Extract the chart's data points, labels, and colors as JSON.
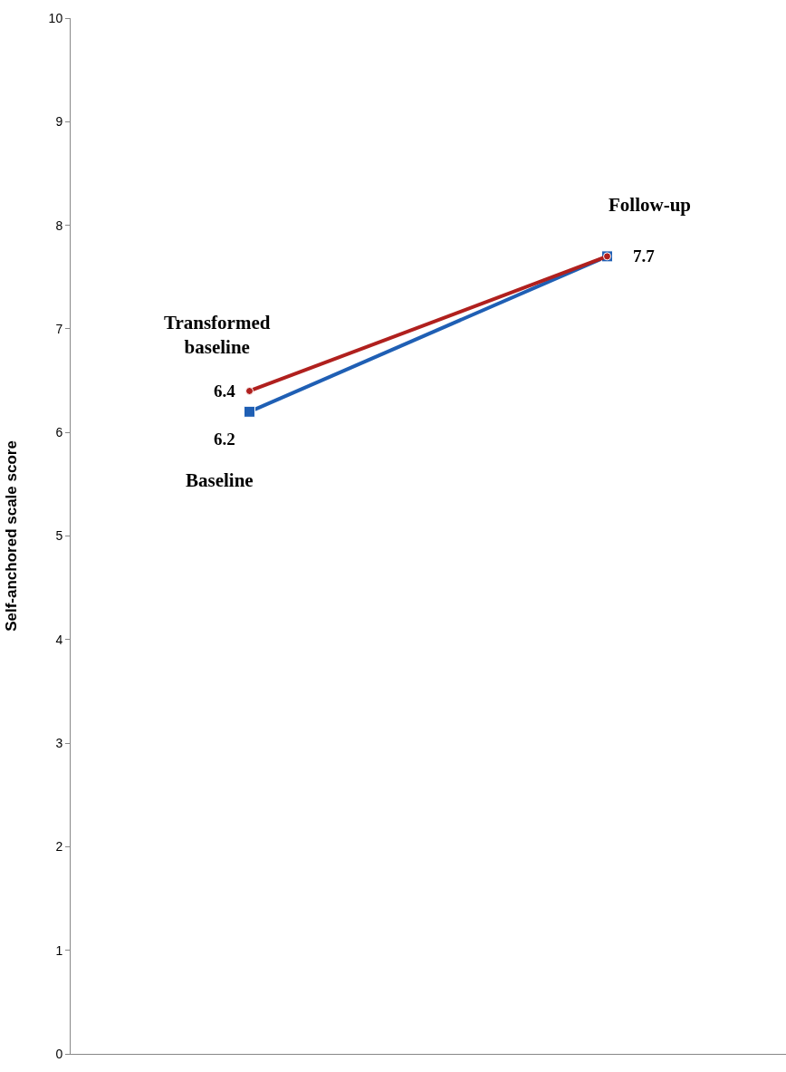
{
  "chart_data": {
    "type": "line",
    "ylabel": "Self-anchored scale score",
    "categories": [
      null,
      null
    ],
    "series": [
      {
        "color": "#1f5fb4",
        "values": [
          6.2,
          7.7
        ],
        "marker": "square",
        "value_labels": [
          "6.2",
          null
        ]
      },
      {
        "color": "#b0201e",
        "values": [
          6.4,
          7.7
        ],
        "marker": "circle",
        "value_labels": [
          "6.4",
          "7.7"
        ]
      }
    ],
    "annotations": [
      "Transformed baseline",
      "Baseline",
      "Follow-up"
    ],
    "ylim": [
      0,
      10
    ],
    "yticks": [
      0,
      1,
      2,
      3,
      4,
      5,
      6,
      7,
      8,
      9,
      10
    ],
    "legend": false
  }
}
